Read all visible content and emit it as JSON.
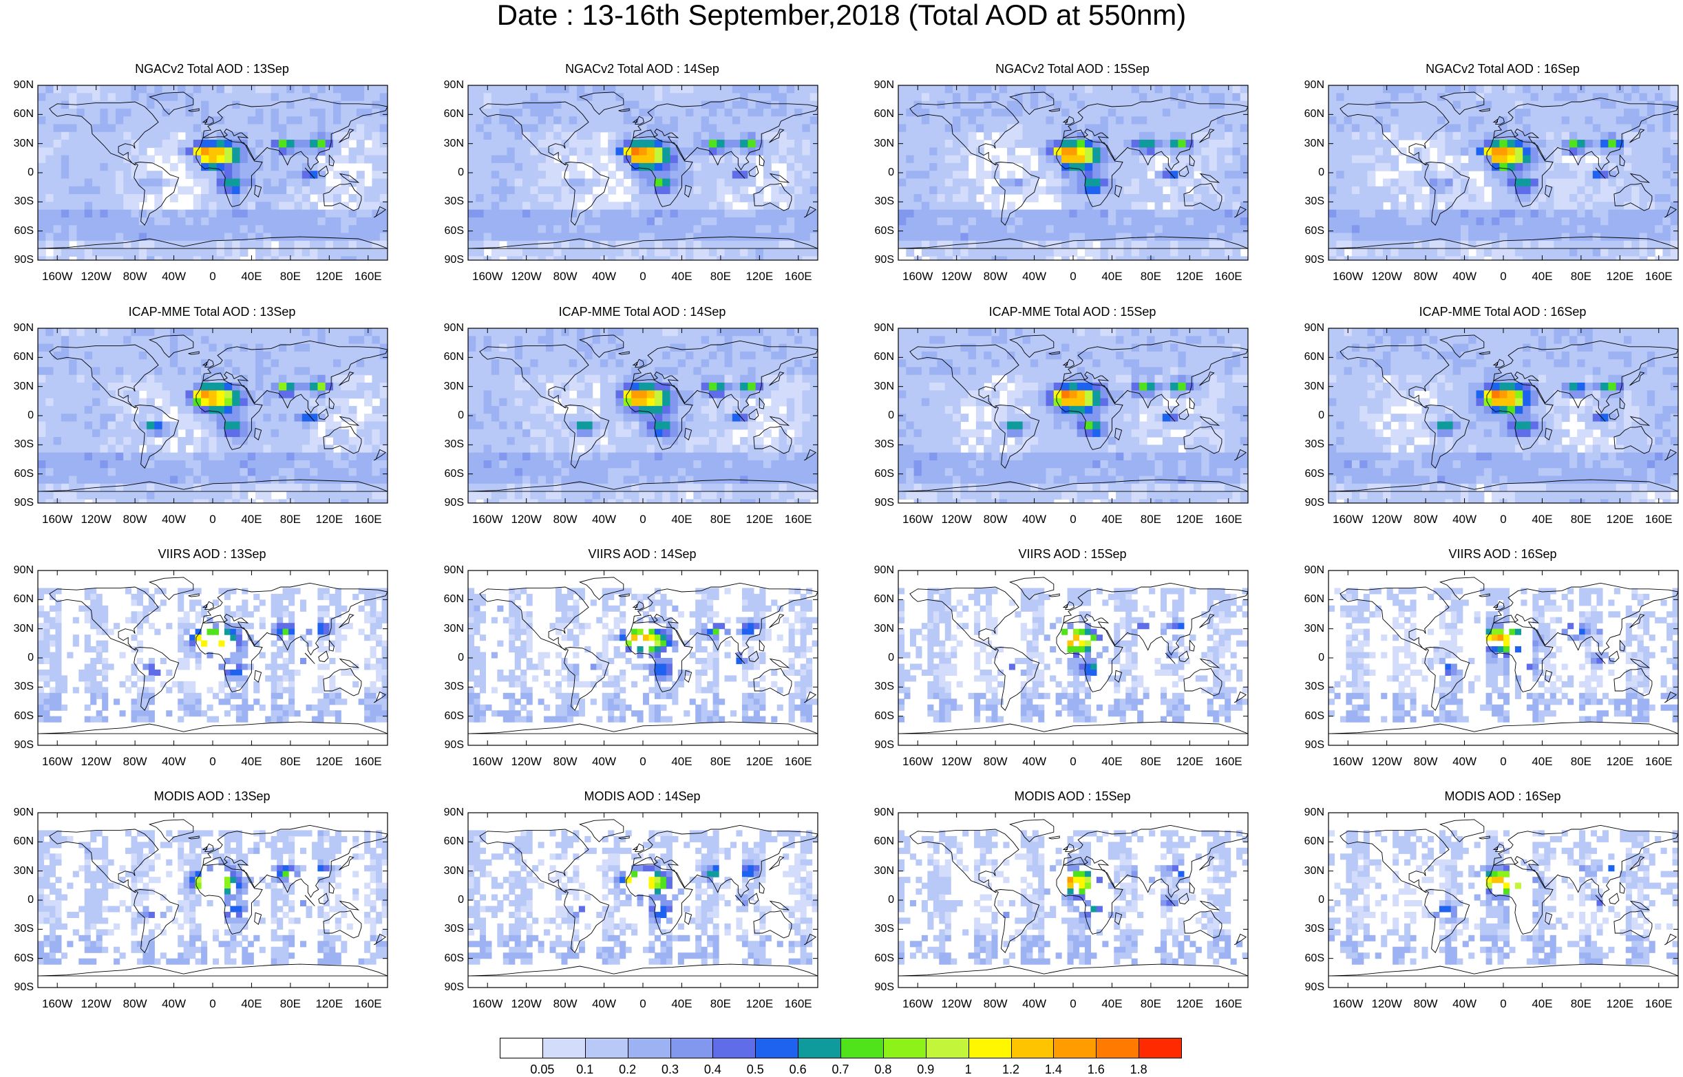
{
  "title": "Date : 13-16th September,2018 (Total AOD at 550nm)",
  "panel_titles": [
    [
      "NGACv2 Total AOD : 13Sep",
      "NGACv2 Total AOD : 14Sep",
      "NGACv2 Total AOD : 15Sep",
      "NGACv2 Total AOD : 16Sep"
    ],
    [
      "ICAP-MME Total AOD : 13Sep",
      "ICAP-MME Total AOD : 14Sep",
      "ICAP-MME Total AOD : 15Sep",
      "ICAP-MME Total AOD : 16Sep"
    ],
    [
      "VIIRS AOD : 13Sep",
      "VIIRS AOD : 14Sep",
      "VIIRS AOD : 15Sep",
      "VIIRS AOD : 16Sep"
    ],
    [
      "MODIS AOD : 13Sep",
      "MODIS AOD : 14Sep",
      "MODIS AOD : 15Sep",
      "MODIS AOD : 16Sep"
    ]
  ],
  "lat_labels": [
    "90N",
    "60N",
    "30N",
    "0",
    "30S",
    "60S",
    "90S"
  ],
  "lon_labels": [
    "160W",
    "120W",
    "80W",
    "40W",
    "0",
    "40E",
    "80E",
    "120E",
    "160E"
  ],
  "colorbar": {
    "labels": [
      "0.05",
      "0.1",
      "0.2",
      "0.3",
      "0.4",
      "0.5",
      "0.6",
      "0.7",
      "0.8",
      "0.9",
      "1",
      "1.2",
      "1.4",
      "1.6",
      "1.8"
    ],
    "colors": [
      "#ffffff",
      "#d3dcfb",
      "#b8c8f7",
      "#9db2f3",
      "#8298ef",
      "#5f6ee8",
      "#1e63f0",
      "#0f9a9c",
      "#50e21a",
      "#8df217",
      "#c3f53a",
      "#fff700",
      "#ffc400",
      "#ff9d00",
      "#ff7a00",
      "#ff2a00"
    ]
  }
}
